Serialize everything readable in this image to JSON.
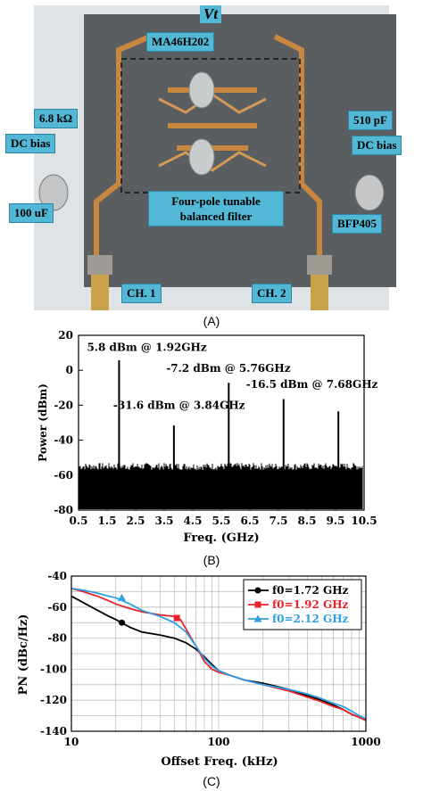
{
  "panel_a": {
    "caption": "(A)",
    "labels": {
      "vt": "Vt",
      "varactor": "MA46H202",
      "resistor": "6.8 kΩ",
      "capacitor": "510 pF",
      "dc_bias_left": "DC bias",
      "dc_bias_right": "DC bias",
      "cap_100uf": "100 uF",
      "filter": "Four-pole tunable balanced filter",
      "transistor": "BFP405",
      "ch1": "CH. 1",
      "ch2": "CH. 2"
    },
    "colors": {
      "board": "#5b5e60",
      "copper": "#c9863f",
      "callout": "#53b8d6"
    }
  },
  "panel_b": {
    "caption": "(B)",
    "chart_data": {
      "type": "line",
      "xlabel": "Freq. (GHz)",
      "ylabel": "Power (dBm)",
      "xlim": [
        0.5,
        10.5
      ],
      "ylim": [
        -80,
        20
      ],
      "xticks": [
        "0.5",
        "1.5",
        "2.5",
        "3.5",
        "4.5",
        "5.5",
        "6.5",
        "7.5",
        "8.5",
        "9.5",
        "10.5"
      ],
      "yticks": [
        "20",
        "0",
        "-20",
        "-40",
        "-60",
        "-80"
      ],
      "noise_floor": -60,
      "peaks": [
        {
          "x": 1.92,
          "y": 5.8
        },
        {
          "x": 3.84,
          "y": -31.6
        },
        {
          "x": 5.76,
          "y": -7.2
        },
        {
          "x": 7.68,
          "y": -16.5
        },
        {
          "x": 9.6,
          "y": -23.5
        }
      ],
      "annotations": [
        {
          "text": "5.8 dBm @ 1.92GHz"
        },
        {
          "text": "-31.6 dBm @ 3.84GHz"
        },
        {
          "text": "-7.2 dBm @ 5.76GHz"
        },
        {
          "text": "-16.5 dBm @ 7.68GHz"
        }
      ]
    }
  },
  "panel_c": {
    "caption": "(C)",
    "chart_data": {
      "type": "line",
      "xlabel": "Offset Freq. (kHz)",
      "ylabel": "PN (dBc/Hz)",
      "xscale": "log",
      "xlim": [
        10,
        1000
      ],
      "ylim": [
        -140,
        -40
      ],
      "xticks": [
        "10",
        "100",
        "1000"
      ],
      "yticks": [
        "-40",
        "-60",
        "-80",
        "-100",
        "-120",
        "-140"
      ],
      "grid": true,
      "legend_position": "top-right",
      "series": [
        {
          "name": "f0=1.72 GHz",
          "color": "#000000",
          "marker": "circle",
          "x": [
            10,
            12,
            15,
            18,
            20,
            25,
            30,
            40,
            50,
            60,
            70,
            80,
            90,
            100,
            120,
            150,
            200,
            300,
            400,
            500,
            600,
            700,
            800,
            900,
            1000
          ],
          "y": [
            -53,
            -57,
            -62,
            -66,
            -68,
            -73,
            -76,
            -78,
            -80,
            -83,
            -87,
            -92,
            -97,
            -101,
            -104,
            -107,
            -109,
            -113,
            -117,
            -120,
            -123,
            -126,
            -129,
            -131,
            -133
          ]
        },
        {
          "name": "f0=1.92 GHz",
          "color": "#e8222a",
          "marker": "square",
          "x": [
            10,
            12,
            15,
            18,
            20,
            25,
            30,
            40,
            50,
            55,
            60,
            70,
            80,
            90,
            100,
            120,
            150,
            200,
            300,
            400,
            500,
            600,
            700,
            800,
            900,
            1000
          ],
          "y": [
            -48,
            -50,
            -53,
            -56,
            -58,
            -61,
            -63,
            -65,
            -66,
            -68,
            -74,
            -85,
            -95,
            -100,
            -102,
            -104,
            -107,
            -110,
            -114,
            -118,
            -121,
            -124,
            -126,
            -129,
            -131,
            -133
          ]
        },
        {
          "name": "f0=2.12 GHz",
          "color": "#2f9fe0",
          "marker": "triangle",
          "x": [
            10,
            12,
            15,
            18,
            20,
            25,
            30,
            40,
            50,
            60,
            70,
            80,
            90,
            100,
            120,
            150,
            200,
            300,
            400,
            500,
            600,
            700,
            800,
            900,
            1000
          ],
          "y": [
            -48,
            -49,
            -51,
            -53,
            -54,
            -58,
            -62,
            -66,
            -70,
            -76,
            -85,
            -93,
            -98,
            -101,
            -104,
            -107,
            -110,
            -113,
            -116,
            -119,
            -122,
            -124,
            -127,
            -130,
            -132
          ]
        }
      ],
      "marker_points": [
        {
          "series": 0,
          "x": 22,
          "y": -70
        },
        {
          "series": 1,
          "x": 52,
          "y": -67
        },
        {
          "series": 2,
          "x": 22,
          "y": -54
        }
      ]
    }
  }
}
